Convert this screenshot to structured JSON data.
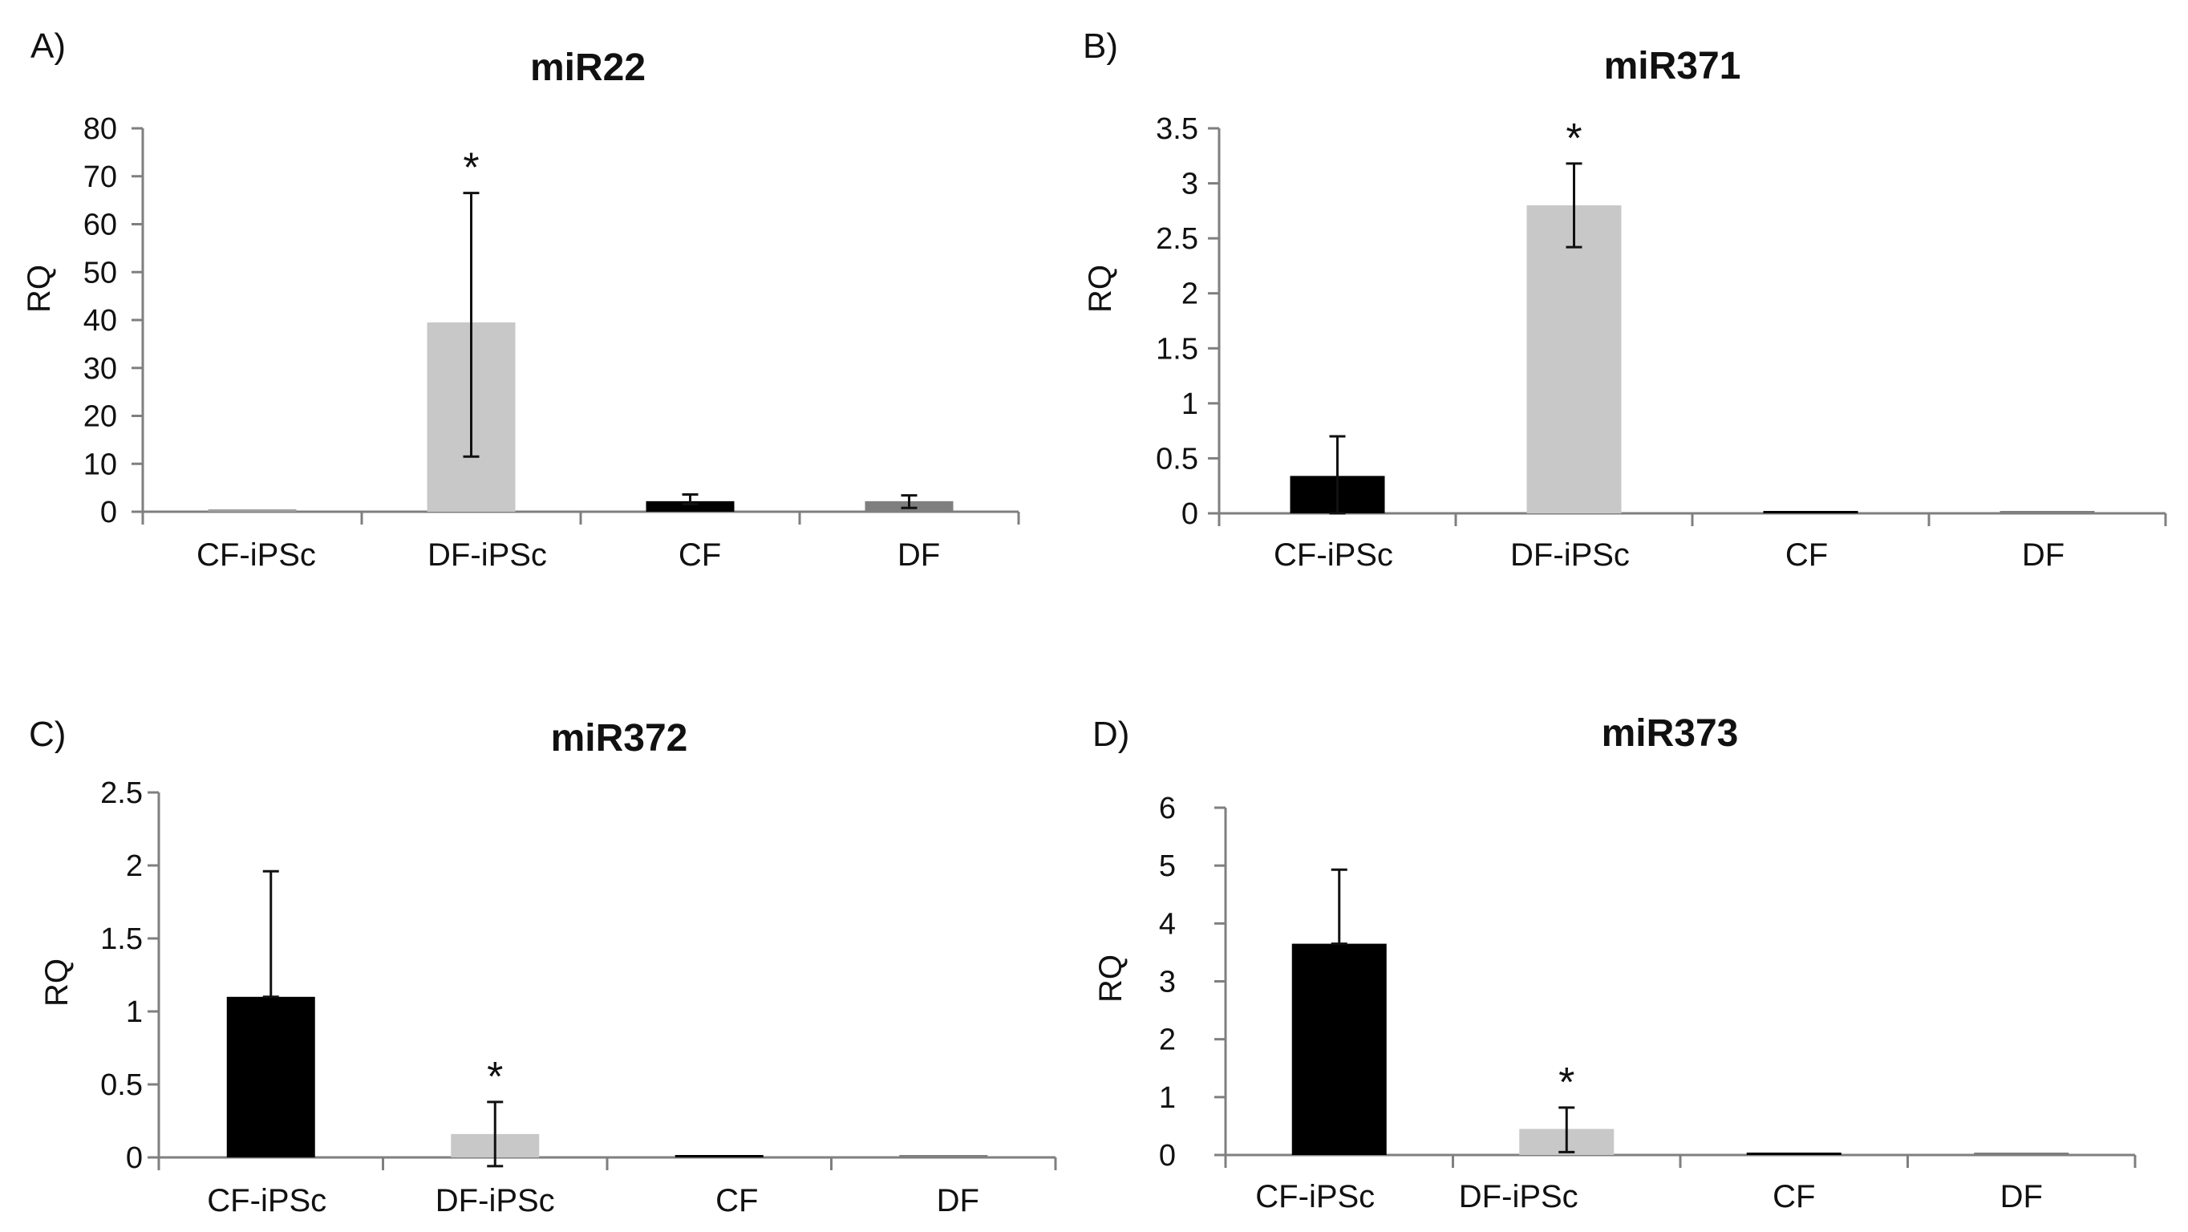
{
  "colors": {
    "black": "#000000",
    "light_gray": "#c8c8c8",
    "dark_gray": "#7f7f7f",
    "axis": "#7f7f7f"
  },
  "chart_data": [
    {
      "panel": "A)",
      "title": "miR22",
      "type": "bar",
      "ylabel": "RQ",
      "ylim": [
        0,
        80
      ],
      "yticks": [
        0,
        10,
        20,
        30,
        40,
        50,
        60,
        70,
        80
      ],
      "ytick_labels": [
        "0",
        "10",
        "20",
        "30",
        "40",
        "50",
        "60",
        "70",
        "80"
      ],
      "categories": [
        "CF-iPSc",
        "DF-iPSc",
        "CF",
        "DF"
      ],
      "values": [
        0.4,
        39.5,
        2.2,
        2.2
      ],
      "error_low": [
        0.4,
        11.5,
        1.6,
        0.8
      ],
      "error_high": [
        0.4,
        66.5,
        3.6,
        3.4
      ],
      "bar_colors": [
        "#a0a0a0",
        "#c8c8c8",
        "#000000",
        "#7f7f7f"
      ],
      "significance": [
        "",
        "*",
        "",
        ""
      ]
    },
    {
      "panel": "B)",
      "title": "miR371",
      "type": "bar",
      "ylabel": "RQ",
      "ylim": [
        0,
        3.5
      ],
      "yticks": [
        0,
        0.5,
        1,
        1.5,
        2,
        2.5,
        3,
        3.5
      ],
      "ytick_labels": [
        "0",
        "0.5",
        "1",
        "1.5",
        "2",
        "2.5",
        "3",
        "3.5"
      ],
      "categories": [
        "CF-iPSc",
        "DF-iPSc",
        "CF",
        "DF"
      ],
      "values": [
        0.34,
        2.8,
        0.005,
        0.005
      ],
      "error_low": [
        0.0,
        2.42,
        0.005,
        0.005
      ],
      "error_high": [
        0.7,
        3.18,
        0.005,
        0.005
      ],
      "bar_colors": [
        "#000000",
        "#c8c8c8",
        "#000000",
        "#7f7f7f"
      ],
      "significance": [
        "",
        "*",
        "",
        ""
      ]
    },
    {
      "panel": "C)",
      "title": "miR372",
      "type": "bar",
      "ylabel": "RQ",
      "ylim": [
        0,
        2.5
      ],
      "yticks": [
        0,
        0.5,
        1,
        1.5,
        2,
        2.5
      ],
      "ytick_labels": [
        "0",
        "0.5",
        "1",
        "1.5",
        "2",
        "2.5"
      ],
      "categories": [
        "CF-iPSc",
        "DF-iPSc",
        "CF",
        "DF"
      ],
      "values": [
        1.1,
        0.16,
        0.005,
        0.005
      ],
      "error_low": [
        1.1,
        -0.06,
        0.005,
        0.005
      ],
      "error_high": [
        1.96,
        0.38,
        0.005,
        0.005
      ],
      "bar_colors": [
        "#000000",
        "#c8c8c8",
        "#000000",
        "#7f7f7f"
      ],
      "significance": [
        "",
        "*",
        "",
        ""
      ]
    },
    {
      "panel": "D)",
      "title": "miR373",
      "type": "bar",
      "ylabel": "RQ",
      "ylim": [
        0,
        6
      ],
      "yticks": [
        0,
        1,
        2,
        3,
        4,
        5,
        6
      ],
      "ytick_labels": [
        "0",
        "1",
        "2",
        "3",
        "4",
        "5",
        "6"
      ],
      "categories": [
        "CF-iPSc",
        "DF-iPSc",
        "CF",
        "DF"
      ],
      "values": [
        3.65,
        0.45,
        0.0,
        0.0
      ],
      "error_low": [
        3.65,
        0.05,
        0.0,
        0.0
      ],
      "error_high": [
        4.93,
        0.82,
        0.0,
        0.0
      ],
      "bar_colors": [
        "#000000",
        "#c8c8c8",
        "#000000",
        "#7f7f7f"
      ],
      "significance": [
        "",
        "*",
        "",
        ""
      ]
    }
  ]
}
